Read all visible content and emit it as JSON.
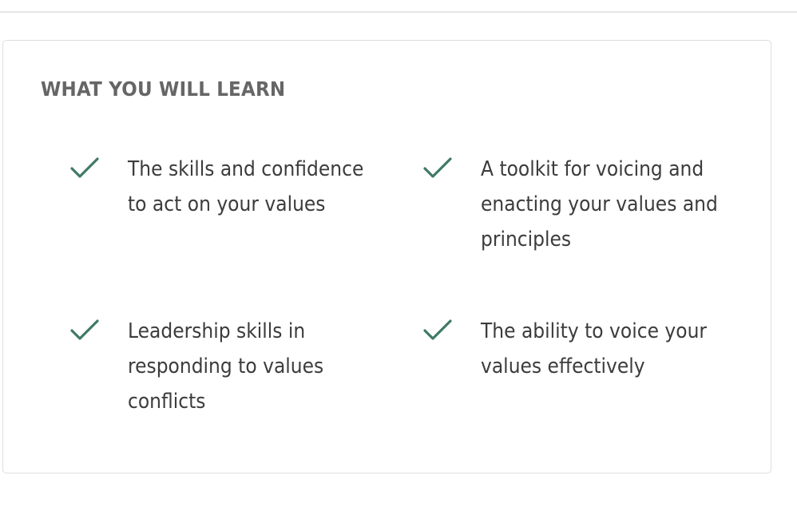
{
  "section": {
    "title": "WHAT YOU WILL LEARN",
    "items": [
      {
        "icon": "check-icon",
        "text": "The skills and confidence to act on your values"
      },
      {
        "icon": "check-icon",
        "text": "A toolkit for voicing and enacting your values and principles"
      },
      {
        "icon": "check-icon",
        "text": "Leadership skills in responding to values conflicts"
      },
      {
        "icon": "check-icon",
        "text": "The ability to voice your values effectively"
      }
    ]
  },
  "colors": {
    "check": "#3f7a63",
    "title": "#666666",
    "text": "#3c3c3c",
    "border": "#dedede"
  }
}
